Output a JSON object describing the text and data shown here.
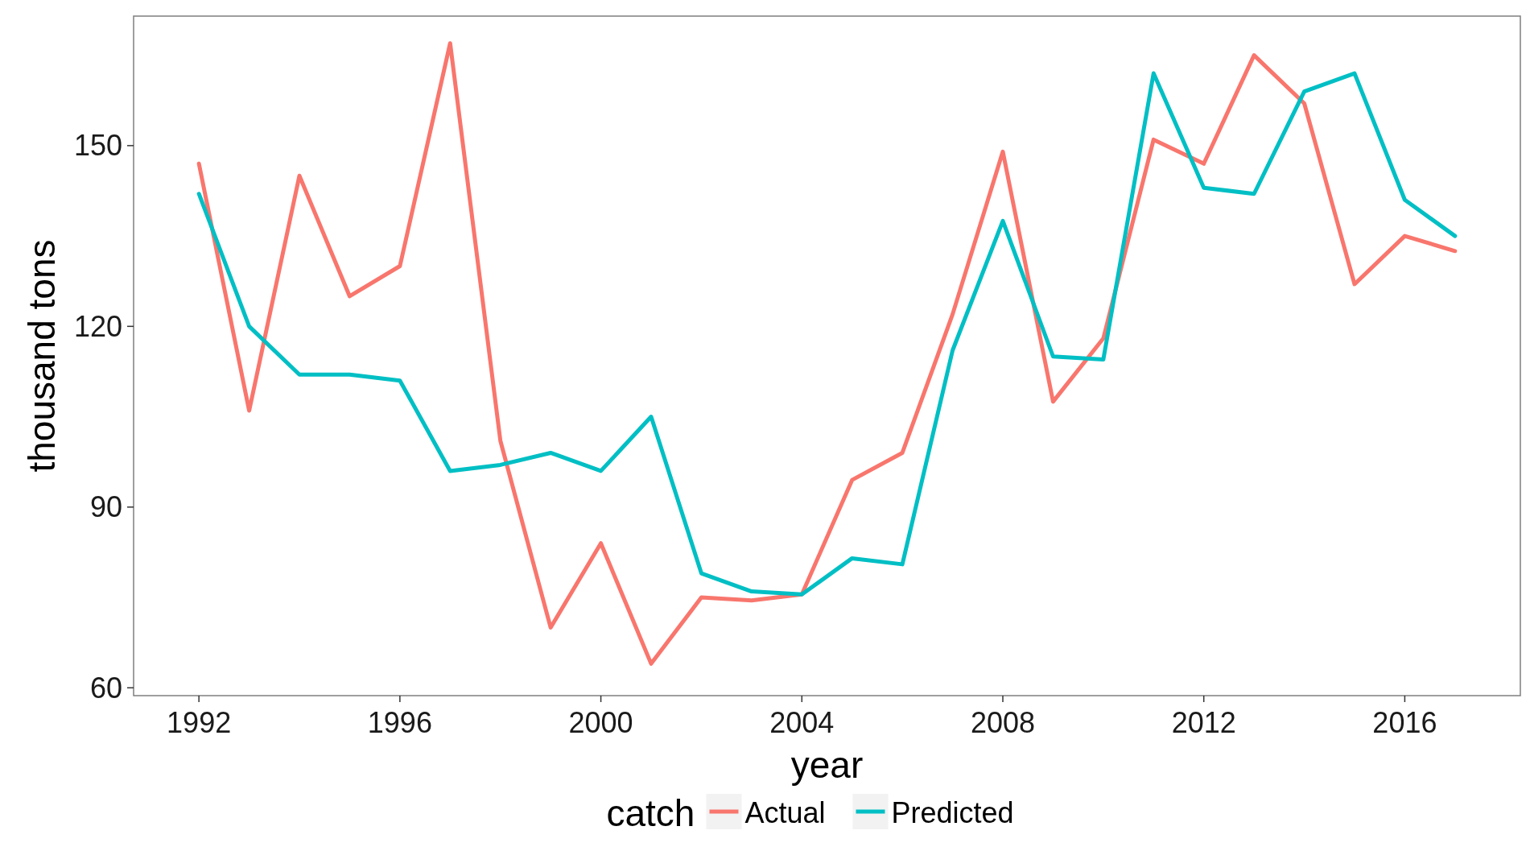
{
  "chart_data": {
    "type": "line",
    "xlabel": "year",
    "ylabel": "thousand tons",
    "legend_title": "catch",
    "legend": "bottom",
    "grid": false,
    "x": [
      1992,
      1993,
      1994,
      1995,
      1996,
      1997,
      1998,
      1999,
      2000,
      2001,
      2002,
      2003,
      2004,
      2005,
      2006,
      2007,
      2008,
      2009,
      2010,
      2011,
      2012,
      2013,
      2014,
      2015,
      2016,
      2017
    ],
    "xlim": [
      1990.7,
      2018.3
    ],
    "xticks": [
      1992,
      1996,
      2000,
      2004,
      2008,
      2012,
      2016
    ],
    "ylim": [
      58.7,
      171.5
    ],
    "yticks": [
      60,
      90,
      120,
      150
    ],
    "series": [
      {
        "name": "Actual",
        "color": "#f8766d",
        "values": [
          147,
          106,
          145,
          125,
          130,
          167,
          101,
          70,
          84,
          64,
          75,
          74.5,
          75.5,
          94.5,
          99,
          122,
          149,
          107.5,
          118,
          151,
          147,
          165,
          157,
          127,
          135,
          132.5
        ]
      },
      {
        "name": "Predicted",
        "color": "#00bfc4",
        "values": [
          142,
          120,
          112,
          112,
          111,
          96,
          97,
          99,
          96,
          105,
          79,
          76,
          75.5,
          81.5,
          80.5,
          116,
          137.5,
          115,
          114.5,
          162,
          143,
          142,
          159,
          162,
          141,
          135
        ]
      }
    ]
  }
}
